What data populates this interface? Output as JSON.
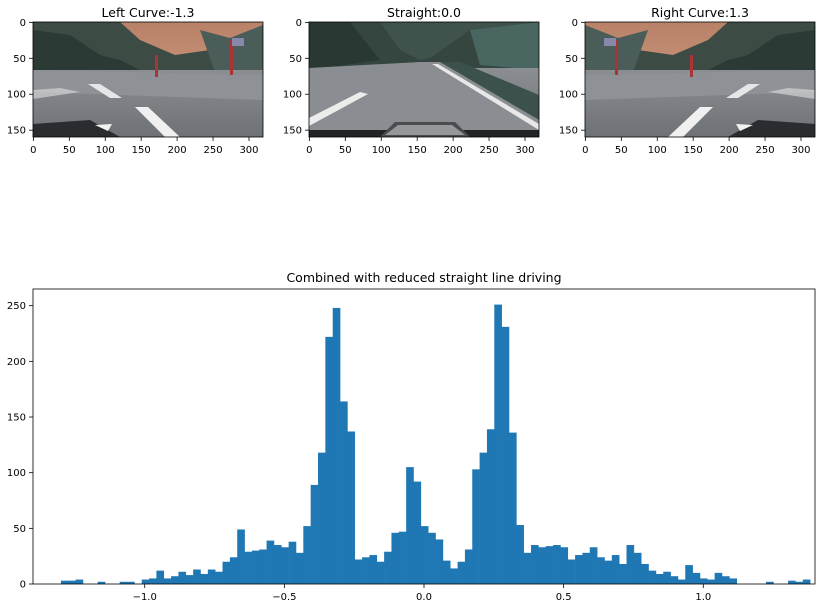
{
  "colors": {
    "bar": "#1f77b4",
    "axis": "#000000",
    "text": "#000000",
    "sky": "#c8937a",
    "road": "#7d8084",
    "hills": "#3b4a44",
    "lane_marking": "#eeeeee"
  },
  "images": [
    {
      "title": "Left Curve:-1.3",
      "scene": "left-curve-road",
      "xticks": [
        "0",
        "50",
        "100",
        "150",
        "200",
        "250",
        "300"
      ],
      "yticks": [
        "0",
        "50",
        "100",
        "150"
      ]
    },
    {
      "title": "Straight:0.0",
      "scene": "straight-road",
      "xticks": [
        "0",
        "50",
        "100",
        "150",
        "200",
        "250",
        "300"
      ],
      "yticks": [
        "0",
        "50",
        "100",
        "150"
      ]
    },
    {
      "title": "Right Curve:1.3",
      "scene": "right-curve-road",
      "xticks": [
        "0",
        "50",
        "100",
        "150",
        "200",
        "250",
        "300"
      ],
      "yticks": [
        "0",
        "50",
        "100",
        "150"
      ]
    }
  ],
  "chart_data": {
    "type": "bar",
    "title": "Combined with reduced straight line driving",
    "xlabel": "",
    "ylabel": "",
    "xlim": [
      -1.4,
      1.4
    ],
    "ylim": [
      0,
      265
    ],
    "grid": false,
    "bin_width": 0.0263,
    "bins_start": -1.3,
    "counts": [
      3,
      3,
      4,
      0,
      0,
      2,
      0,
      0,
      2,
      2,
      0,
      4,
      5,
      12,
      5,
      7,
      11,
      8,
      13,
      9,
      13,
      11,
      20,
      24,
      49,
      29,
      30,
      31,
      39,
      35,
      33,
      38,
      28,
      52,
      89,
      118,
      222,
      248,
      164,
      137,
      22,
      24,
      26,
      20,
      29,
      46,
      47,
      105,
      92,
      52,
      46,
      40,
      21,
      14,
      20,
      31,
      103,
      118,
      139,
      251,
      231,
      136,
      53,
      28,
      35,
      33,
      34,
      35,
      33,
      22,
      26,
      28,
      33,
      24,
      21,
      26,
      18,
      35,
      28,
      18,
      12,
      9,
      11,
      7,
      4,
      17,
      10,
      5,
      4,
      10,
      7,
      5,
      0,
      0,
      0,
      0,
      2,
      0,
      0,
      3,
      2,
      4
    ],
    "xticks": [
      -1.0,
      -0.5,
      0.0,
      0.5,
      1.0
    ],
    "xtick_labels": [
      "−1.0",
      "−0.5",
      "0.0",
      "0.5",
      "1.0"
    ],
    "yticks": [
      0,
      50,
      100,
      150,
      200,
      250
    ],
    "ytick_labels": [
      "0",
      "50",
      "100",
      "150",
      "200",
      "250"
    ]
  }
}
